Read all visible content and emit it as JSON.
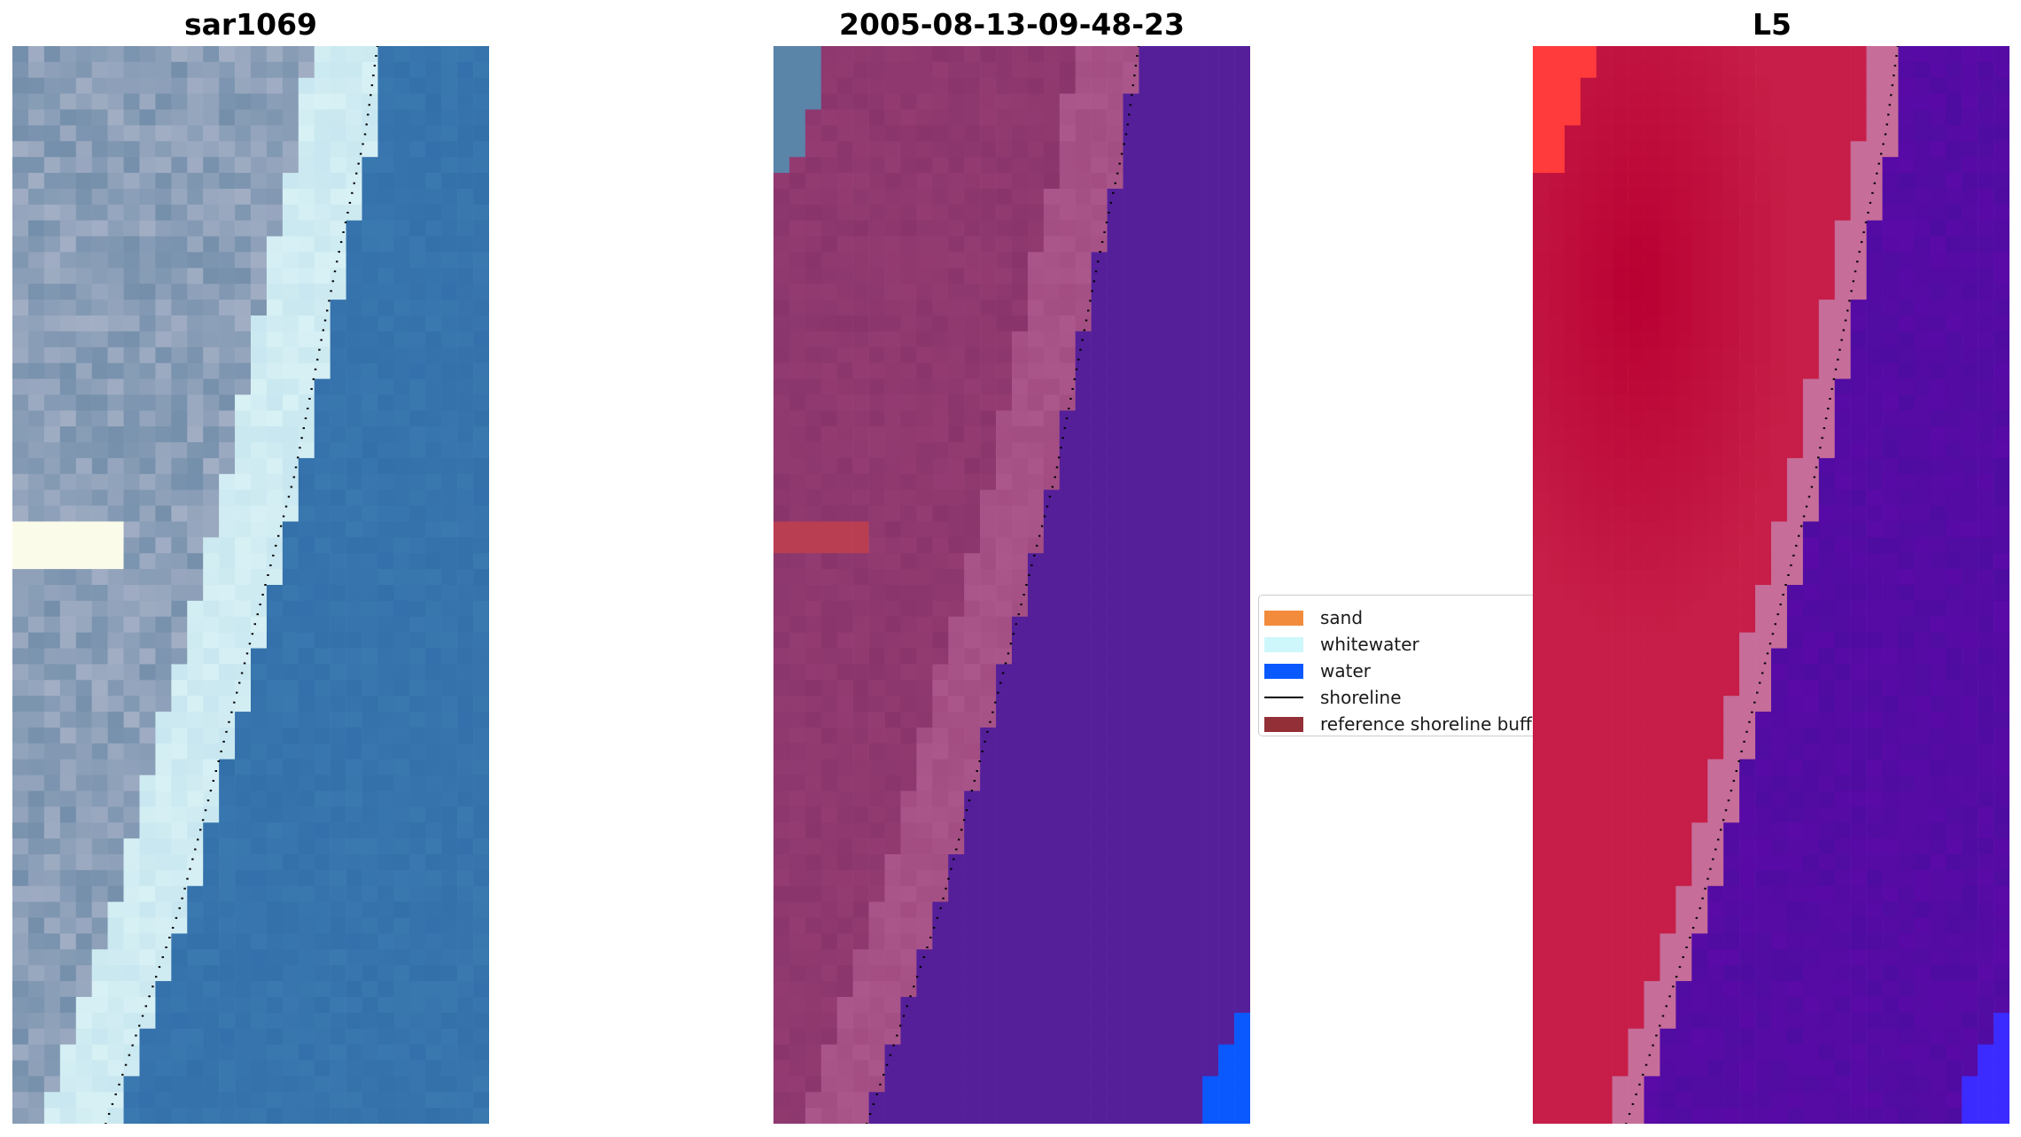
{
  "chart_data": [
    {
      "type": "heatmap",
      "title": "sar1069",
      "image_kind": "rgb",
      "colors": {
        "land_dark": "#5d7f9e",
        "land_light": "#a9b3c8",
        "whitewater": "#d8f1f5",
        "foam_highlight": "#fbfbea",
        "water": "#3a78b0"
      },
      "shoreline_points": [
        [
          0.765,
          0.0
        ],
        [
          0.74,
          0.08
        ],
        [
          0.68,
          0.2
        ],
        [
          0.59,
          0.4
        ],
        [
          0.47,
          0.6
        ],
        [
          0.35,
          0.8
        ],
        [
          0.195,
          1.0
        ]
      ]
    },
    {
      "type": "heatmap",
      "title": "2005-08-13-09-48-23",
      "image_kind": "classified",
      "colors": {
        "land": "#943c72",
        "sand_rim": "#b15e92",
        "water": "#551f9a",
        "water_class": "#0a59ff",
        "buffer": "#b93e52",
        "scene_edge": "#5a84a8"
      },
      "shoreline_points": [
        [
          0.765,
          0.0
        ],
        [
          0.74,
          0.08
        ],
        [
          0.68,
          0.2
        ],
        [
          0.59,
          0.4
        ],
        [
          0.47,
          0.6
        ],
        [
          0.35,
          0.8
        ],
        [
          0.195,
          1.0
        ]
      ]
    },
    {
      "type": "heatmap",
      "title": "L5",
      "image_kind": "index",
      "colors": {
        "land": "#c61e48",
        "land_core": "#b90032",
        "sand_rim": "#c66d99",
        "water": "#5a0aa7",
        "water_class": "#3b2bff",
        "corner": "#ff3b3b"
      },
      "shoreline_points": [
        [
          0.765,
          0.0
        ],
        [
          0.74,
          0.08
        ],
        [
          0.68,
          0.2
        ],
        [
          0.59,
          0.4
        ],
        [
          0.47,
          0.6
        ],
        [
          0.35,
          0.8
        ],
        [
          0.195,
          1.0
        ]
      ]
    }
  ],
  "legend": {
    "items": [
      {
        "label": "sand",
        "kind": "patch",
        "color": "#f28b3c"
      },
      {
        "label": "whitewater",
        "kind": "patch",
        "color": "#cdf7fb"
      },
      {
        "label": "water",
        "kind": "patch",
        "color": "#0a59ff"
      },
      {
        "label": "shoreline",
        "kind": "line",
        "color": "#000000"
      },
      {
        "label": "reference shoreline buffer",
        "kind": "patch",
        "color": "#932f37"
      }
    ]
  }
}
